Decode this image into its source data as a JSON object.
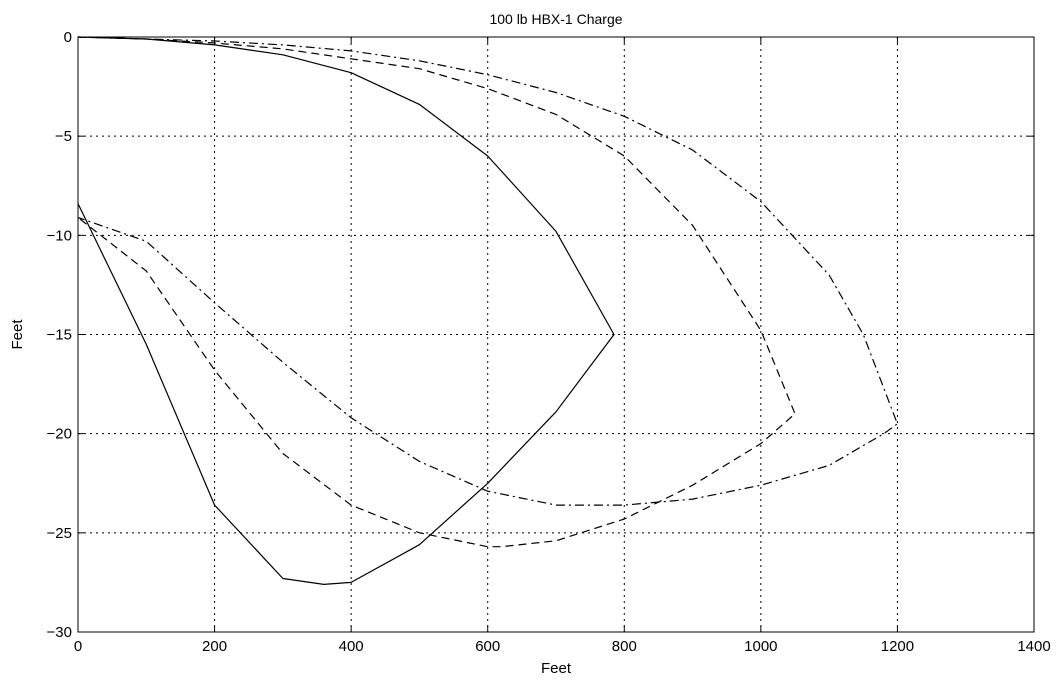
{
  "chart_data": {
    "type": "line",
    "title": "100 lb HBX-1 Charge",
    "xlabel": "Feet",
    "ylabel": "Feet",
    "xlim": [
      0,
      1400
    ],
    "ylim": [
      -30,
      0
    ],
    "xticks": [
      0,
      200,
      400,
      600,
      800,
      1000,
      1200,
      1400
    ],
    "yticks": [
      0,
      -5,
      -10,
      -15,
      -20,
      -25,
      -30
    ],
    "xtick_labels": [
      "0",
      "200",
      "400",
      "600",
      "800",
      "1000",
      "1200",
      "1400"
    ],
    "ytick_labels": [
      "0",
      "−5",
      "−10",
      "−15",
      "−20",
      "−25",
      "−30"
    ],
    "grid": true,
    "legend": null,
    "colors": {
      "line": "#000000",
      "grid": "#000000",
      "background": "#ffffff"
    },
    "series": [
      {
        "linestyle": "solid",
        "x": [
          0,
          100,
          200,
          300,
          400,
          500,
          600,
          700,
          785,
          700,
          600,
          500,
          400,
          360,
          300,
          200,
          100,
          0
        ],
        "y": [
          0,
          -0.1,
          -0.4,
          -0.9,
          -1.8,
          -3.4,
          -6.0,
          -9.8,
          -15.0,
          -18.9,
          -22.5,
          -25.6,
          -27.5,
          -27.6,
          -27.3,
          -23.6,
          -15.5,
          -8.4
        ]
      },
      {
        "linestyle": "dashed",
        "x": [
          0,
          100,
          200,
          300,
          400,
          500,
          600,
          700,
          800,
          900,
          1000,
          1050,
          1000,
          900,
          800,
          700,
          620,
          600,
          500,
          400,
          300,
          200,
          100,
          0
        ],
        "y": [
          0,
          -0.1,
          -0.3,
          -0.6,
          -1.1,
          -1.6,
          -2.6,
          -3.9,
          -6.0,
          -9.5,
          -14.8,
          -19.0,
          -20.5,
          -22.6,
          -24.3,
          -25.4,
          -25.7,
          -25.7,
          -25.0,
          -23.6,
          -21.0,
          -16.8,
          -11.8,
          -9.1
        ]
      },
      {
        "linestyle": "dashdot",
        "x": [
          0,
          100,
          200,
          300,
          400,
          500,
          600,
          700,
          800,
          900,
          1000,
          1100,
          1150,
          1200,
          1180,
          1100,
          1000,
          900,
          800,
          700,
          600,
          500,
          400,
          300,
          200,
          100,
          0
        ],
        "y": [
          0,
          -0.1,
          -0.2,
          -0.4,
          -0.7,
          -1.2,
          -1.9,
          -2.8,
          -4.0,
          -5.7,
          -8.3,
          -12.0,
          -15.0,
          -19.5,
          -20.0,
          -21.6,
          -22.6,
          -23.3,
          -23.6,
          -23.6,
          -22.9,
          -21.4,
          -19.2,
          -16.4,
          -13.4,
          -10.3,
          -9.1
        ]
      }
    ]
  }
}
